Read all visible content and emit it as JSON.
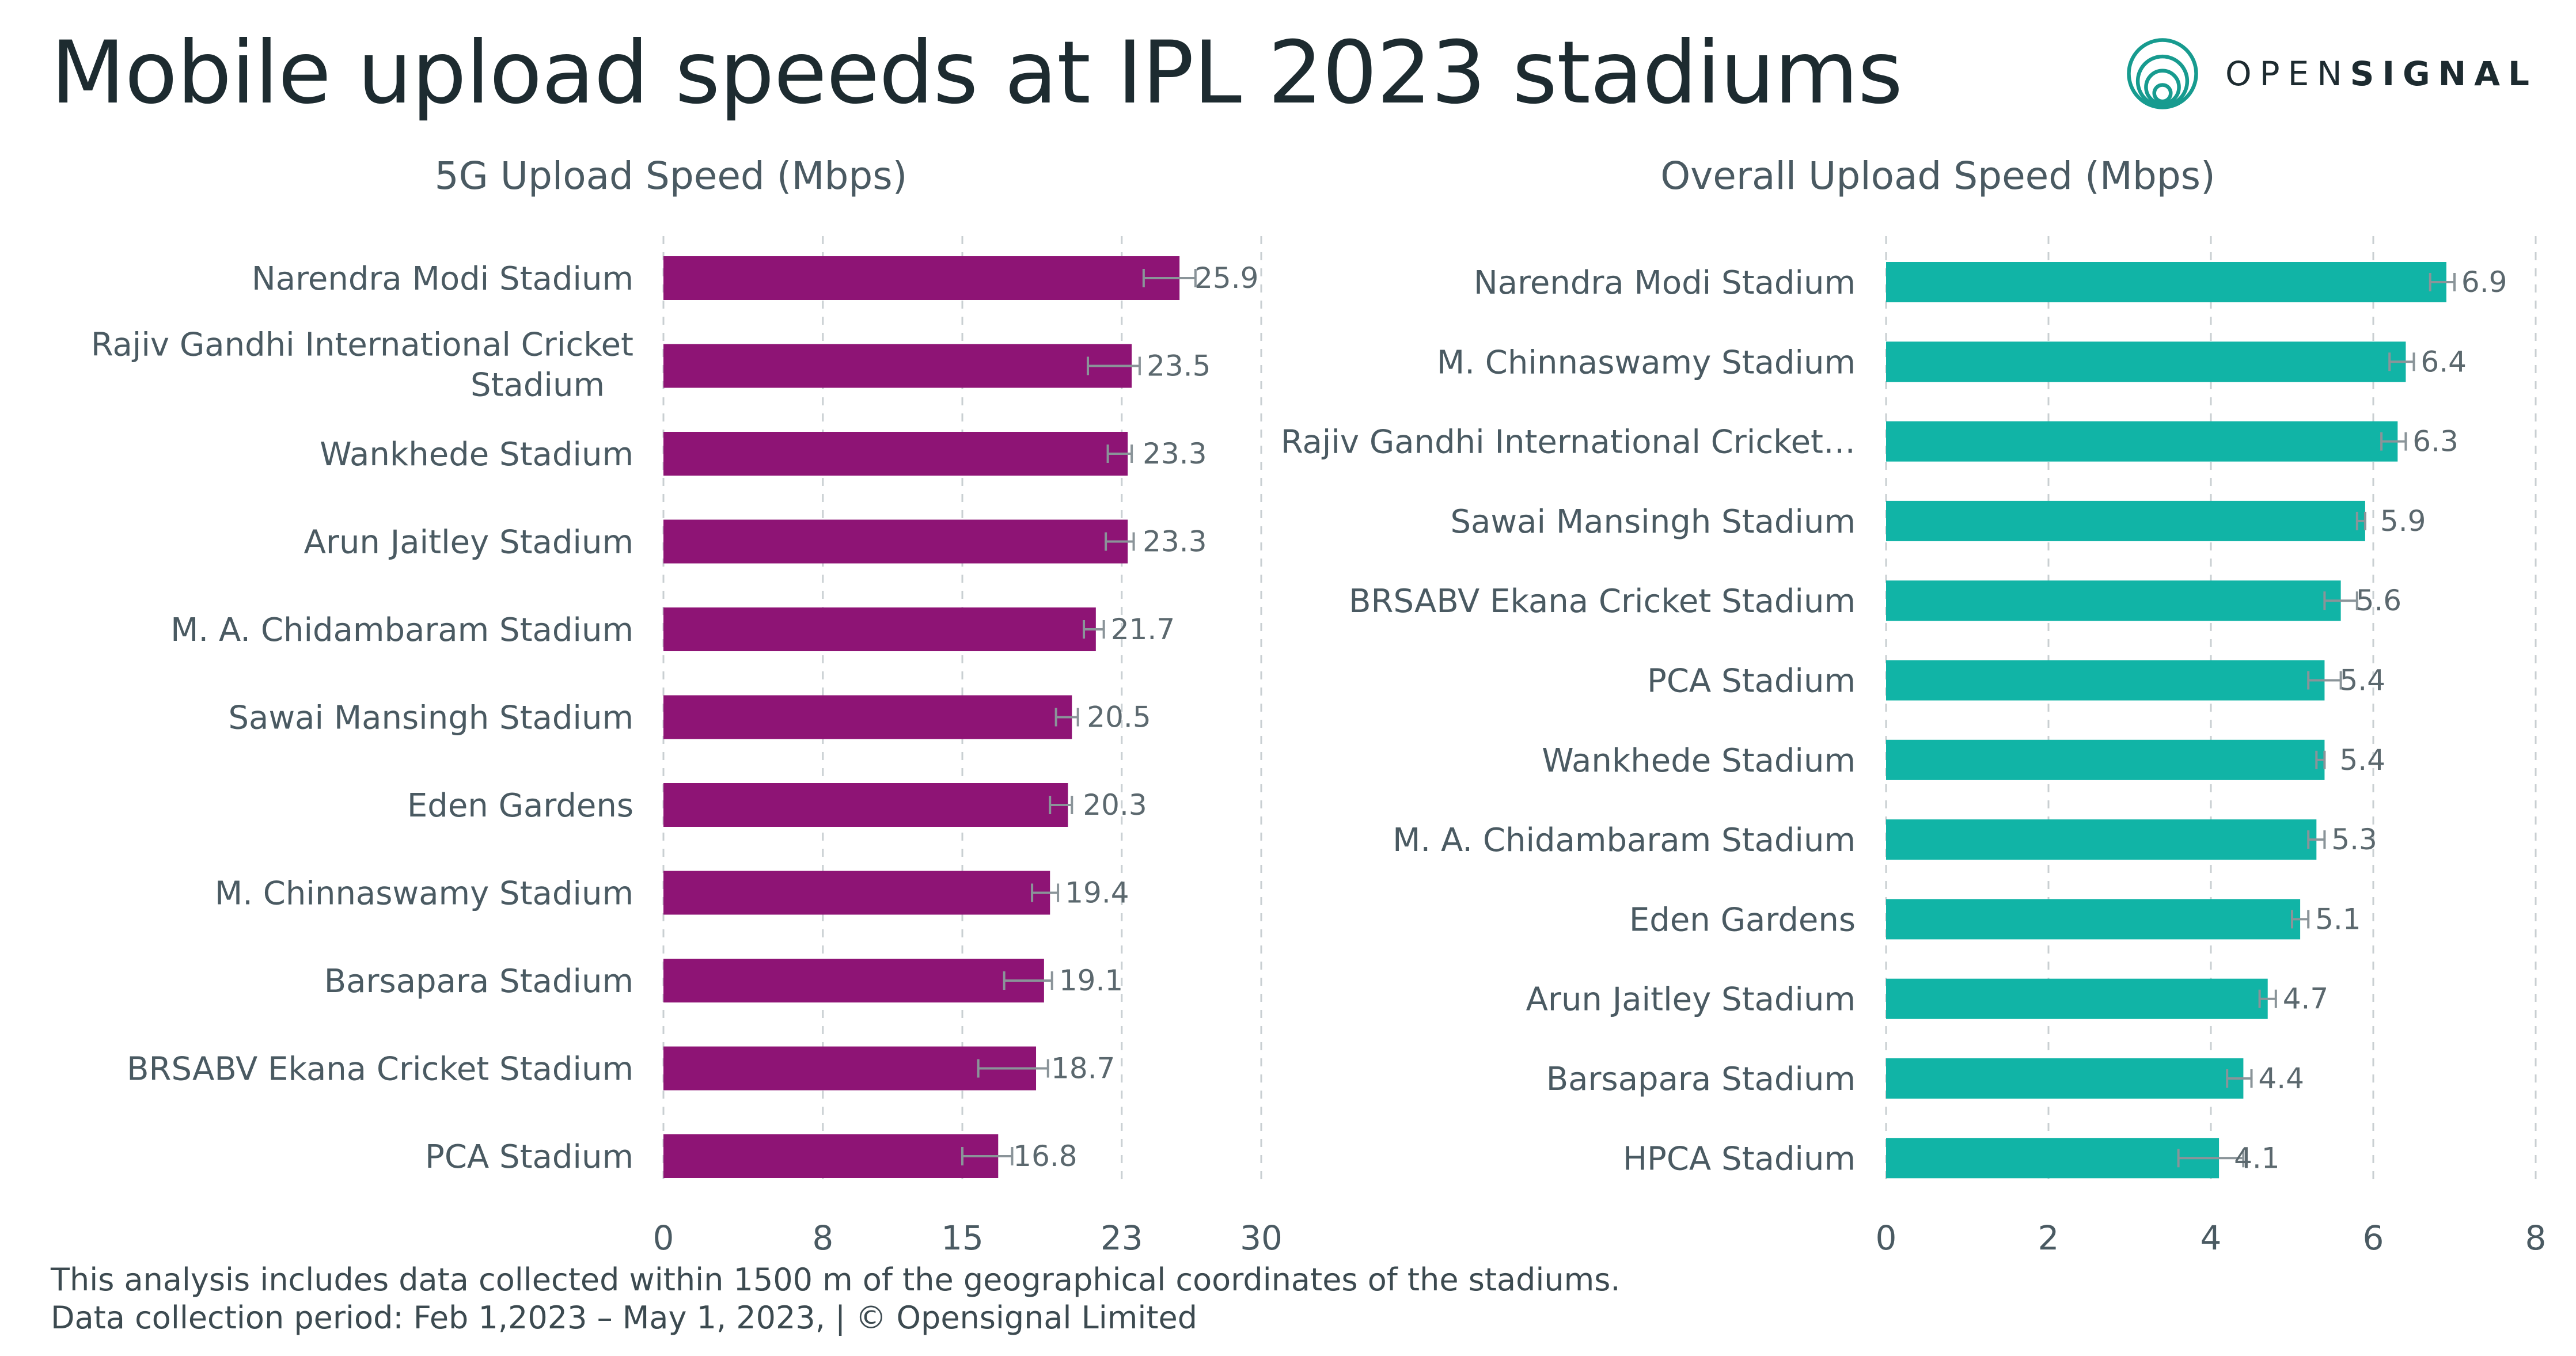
{
  "page_title": "Mobile upload speeds at IPL 2023 stadiums",
  "brand": {
    "text_light": "OPEN",
    "text_bold": "SIGNAL",
    "icon": "opensignal-logo-icon",
    "color": "#179b8f"
  },
  "footer": {
    "line1": "This analysis includes data collected within 1500 m of the geographical coordinates of the stadiums.",
    "line2": "Data collection period: Feb 1,2023 – May 1, 2023, | © Opensignal Limited"
  },
  "chart_data": [
    {
      "type": "bar",
      "orientation": "horizontal",
      "title": "5G Upload Speed (Mbps)",
      "color": "#8e1475",
      "xlim": [
        0,
        30
      ],
      "ticks": [
        0,
        8,
        15,
        23,
        30
      ],
      "grid": true,
      "error_bars": true,
      "categories": [
        "Narendra Modi Stadium",
        "Rajiv Gandhi International Cricket Stadium",
        "Wankhede Stadium",
        "Arun Jaitley Stadium",
        "M. A. Chidambaram Stadium",
        "Sawai Mansingh Stadium",
        "Eden Gardens",
        "M. Chinnaswamy Stadium",
        "Barsapara Stadium",
        "BRSABV Ekana Cricket Stadium",
        "PCA Stadium"
      ],
      "category_lines": [
        [
          "Narendra Modi Stadium"
        ],
        [
          "Rajiv Gandhi International Cricket",
          "Stadium"
        ],
        [
          "Wankhede Stadium"
        ],
        [
          "Arun Jaitley Stadium"
        ],
        [
          "M. A. Chidambaram Stadium"
        ],
        [
          "Sawai Mansingh Stadium"
        ],
        [
          "Eden Gardens"
        ],
        [
          "M. Chinnaswamy Stadium"
        ],
        [
          "Barsapara Stadium"
        ],
        [
          "BRSABV Ekana Cricket Stadium"
        ],
        [
          "PCA Stadium"
        ]
      ],
      "values": [
        25.9,
        23.5,
        23.3,
        23.3,
        21.7,
        20.5,
        20.3,
        19.4,
        19.1,
        18.7,
        16.8
      ],
      "value_labels": [
        "25.9",
        "23.5",
        "23.3",
        "23.3",
        "21.7",
        "20.5",
        "20.3",
        "19.4",
        "19.1",
        "18.7",
        "16.8"
      ],
      "error_low": [
        24.1,
        21.3,
        22.3,
        22.2,
        21.1,
        19.7,
        19.4,
        18.5,
        17.1,
        15.8,
        15.0
      ],
      "error_high": [
        26.7,
        23.9,
        23.5,
        23.6,
        22.1,
        20.8,
        20.5,
        19.8,
        19.5,
        19.3,
        17.5
      ]
    },
    {
      "type": "bar",
      "orientation": "horizontal",
      "title": "Overall Upload Speed (Mbps)",
      "color": "#11b4a6",
      "xlim": [
        0,
        8
      ],
      "ticks": [
        0,
        2,
        4,
        6,
        8
      ],
      "grid": true,
      "error_bars": true,
      "categories": [
        "Narendra Modi Stadium",
        "M. Chinnaswamy Stadium",
        "Rajiv Gandhi International Cricket…",
        "Sawai Mansingh Stadium",
        "BRSABV Ekana Cricket Stadium",
        "PCA Stadium",
        "Wankhede Stadium",
        "M. A. Chidambaram Stadium",
        "Eden Gardens",
        "Arun Jaitley Stadium",
        "Barsapara Stadium",
        "HPCA Stadium"
      ],
      "category_lines": [
        [
          "Narendra Modi Stadium"
        ],
        [
          "M. Chinnaswamy Stadium"
        ],
        [
          "Rajiv Gandhi International Cricket…"
        ],
        [
          "Sawai Mansingh Stadium"
        ],
        [
          "BRSABV Ekana Cricket Stadium"
        ],
        [
          "PCA Stadium"
        ],
        [
          "Wankhede Stadium"
        ],
        [
          "M. A. Chidambaram Stadium"
        ],
        [
          "Eden Gardens"
        ],
        [
          "Arun Jaitley Stadium"
        ],
        [
          "Barsapara Stadium"
        ],
        [
          "HPCA Stadium"
        ]
      ],
      "values": [
        6.9,
        6.4,
        6.3,
        5.9,
        5.6,
        5.4,
        5.4,
        5.3,
        5.1,
        4.7,
        4.4,
        4.1
      ],
      "value_labels": [
        "6.9",
        "6.4",
        "6.3",
        "5.9",
        "5.6",
        "5.4",
        "5.4",
        "5.3",
        "5.1",
        "4.7",
        "4.4",
        "4.1"
      ],
      "error_low": [
        6.7,
        6.2,
        6.1,
        5.8,
        5.4,
        5.2,
        5.3,
        5.2,
        5.0,
        4.6,
        4.2,
        3.6
      ],
      "error_high": [
        7.0,
        6.5,
        6.4,
        5.9,
        5.8,
        5.6,
        5.4,
        5.4,
        5.2,
        4.8,
        4.5,
        4.4
      ]
    }
  ]
}
